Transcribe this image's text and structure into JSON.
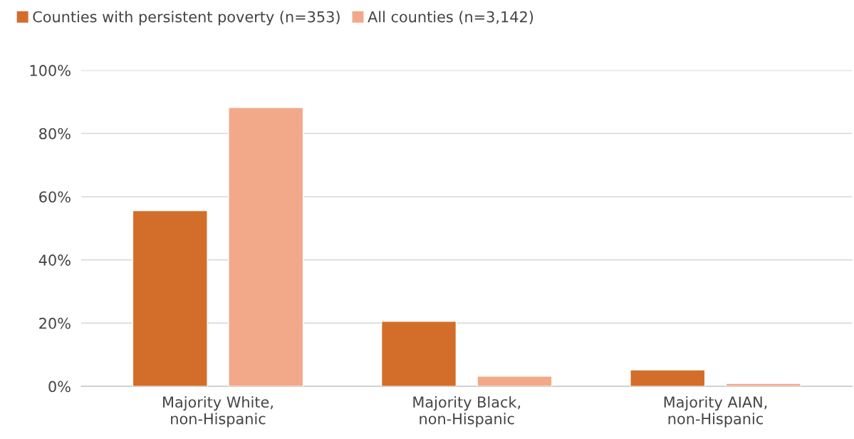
{
  "chart_data": {
    "type": "bar",
    "categories": [
      "Majority White,\nnon-Hispanic",
      "Majority Black,\nnon-Hispanic",
      "Majority AIAN,\nnon-Hispanic"
    ],
    "series": [
      {
        "name": "Counties with persistent poverty (n=353)",
        "color": "#d36e2a",
        "values": [
          55.6,
          20.6,
          5.2
        ]
      },
      {
        "name": "All counties (n=3,142)",
        "color": "#f2a98a",
        "values": [
          88.2,
          3.2,
          0.9
        ]
      }
    ],
    "ylim": [
      0,
      100
    ],
    "yticks": [
      {
        "value": 0,
        "label": "0%"
      },
      {
        "value": 20,
        "label": "20%"
      },
      {
        "value": 40,
        "label": "40%"
      },
      {
        "value": 60,
        "label": "60%"
      },
      {
        "value": 80,
        "label": "80%"
      },
      {
        "value": 100,
        "label": "100%"
      }
    ],
    "grid": "y",
    "legend": "top left"
  }
}
